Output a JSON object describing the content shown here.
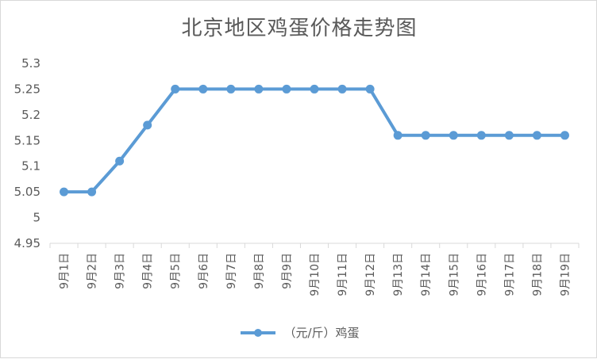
{
  "chart_data": {
    "type": "line",
    "title": "北京地区鸡蛋价格走势图",
    "categories": [
      "9月1日",
      "9月2日",
      "9月3日",
      "9月4日",
      "9月5日",
      "9月6日",
      "9月7日",
      "9月8日",
      "9月9日",
      "9月10日",
      "9月11日",
      "9月12日",
      "9月13日",
      "9月14日",
      "9月15日",
      "9月16日",
      "9月17日",
      "9月18日",
      "9月19日"
    ],
    "series": [
      {
        "name": "（元/斤）鸡蛋",
        "values": [
          5.05,
          5.05,
          5.11,
          5.18,
          5.25,
          5.25,
          5.25,
          5.25,
          5.25,
          5.25,
          5.25,
          5.25,
          5.16,
          5.16,
          5.16,
          5.16,
          5.16,
          5.16,
          5.16
        ],
        "color": "#5b9bd5"
      }
    ],
    "ylim": [
      4.95,
      5.3
    ],
    "yticks": [
      "4.95",
      "5",
      "5.05",
      "5.1",
      "5.15",
      "5.2",
      "5.25",
      "5.3"
    ],
    "xlabel": "",
    "ylabel": "",
    "grid": false,
    "legend": "bottom",
    "axis_color": "#d9d9d9"
  }
}
